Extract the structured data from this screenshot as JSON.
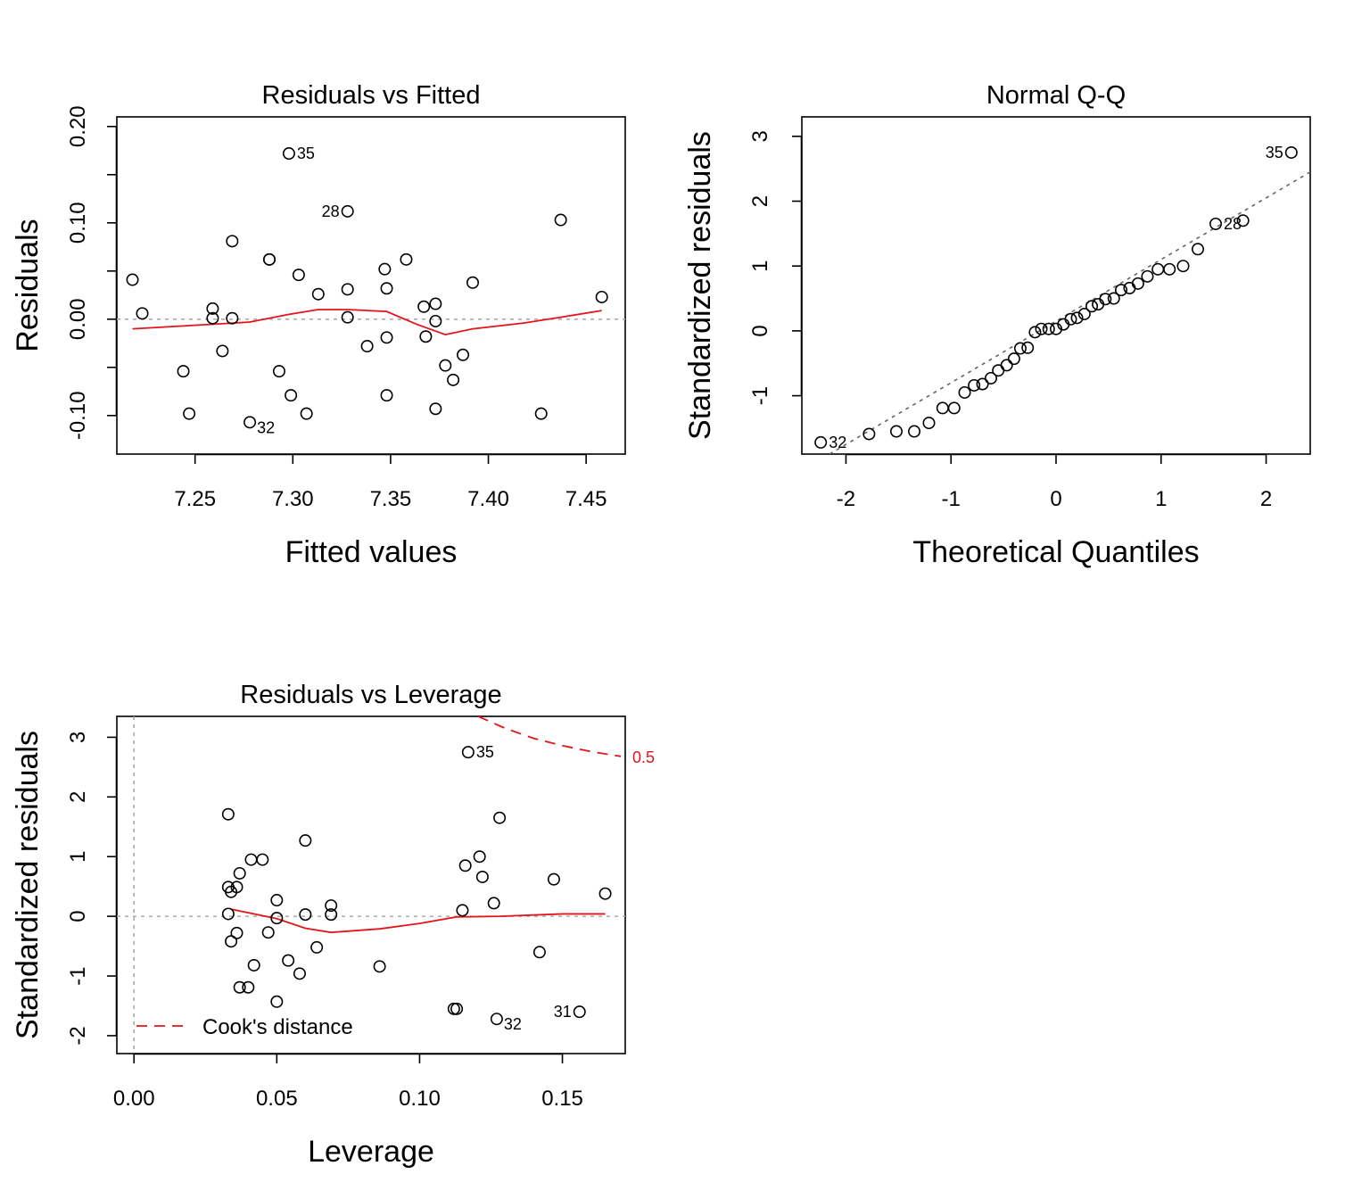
{
  "colors": {
    "smooth": "#e4141b",
    "reference": "#aaaaaa",
    "qq_line": "#666666",
    "points": "#000000"
  },
  "chart_data": [
    {
      "id": "rvf",
      "type": "scatter",
      "title": "Residuals vs Fitted",
      "xlabel": "Fitted values",
      "ylabel": "Residuals",
      "xlim": [
        7.21,
        7.47
      ],
      "ylim": [
        -0.14,
        0.21
      ],
      "xticks": [
        "7.25",
        "7.30",
        "7.35",
        "7.40",
        "7.45"
      ],
      "xtick_values": [
        7.25,
        7.3,
        7.35,
        7.4,
        7.45
      ],
      "yticks": [
        "-0.10",
        "0.00",
        "0.10",
        "0.20"
      ],
      "ytick_values": [
        -0.1,
        0.0,
        0.1,
        0.2
      ],
      "yminor_ticks": [
        -0.05,
        0.05,
        0.15
      ],
      "reference_y": 0,
      "points": [
        [
          7.218,
          0.041
        ],
        [
          7.223,
          0.006
        ],
        [
          7.244,
          -0.054
        ],
        [
          7.247,
          -0.098
        ],
        [
          7.259,
          0.011
        ],
        [
          7.259,
          0.001
        ],
        [
          7.264,
          -0.033
        ],
        [
          7.269,
          0.081
        ],
        [
          7.269,
          0.001
        ],
        [
          7.278,
          -0.107
        ],
        [
          7.288,
          0.062
        ],
        [
          7.288,
          0.062
        ],
        [
          7.293,
          -0.054
        ],
        [
          7.298,
          0.172
        ],
        [
          7.299,
          -0.079
        ],
        [
          7.303,
          0.046
        ],
        [
          7.307,
          -0.098
        ],
        [
          7.313,
          0.026
        ],
        [
          7.328,
          0.002
        ],
        [
          7.328,
          0.031
        ],
        [
          7.328,
          0.112
        ],
        [
          7.338,
          -0.028
        ],
        [
          7.347,
          0.052
        ],
        [
          7.348,
          0.032
        ],
        [
          7.348,
          -0.019
        ],
        [
          7.348,
          -0.079
        ],
        [
          7.358,
          0.062
        ],
        [
          7.367,
          0.013
        ],
        [
          7.368,
          -0.018
        ],
        [
          7.373,
          0.016
        ],
        [
          7.373,
          -0.002
        ],
        [
          7.373,
          -0.093
        ],
        [
          7.378,
          -0.048
        ],
        [
          7.382,
          -0.063
        ],
        [
          7.387,
          -0.037
        ],
        [
          7.392,
          0.038
        ],
        [
          7.427,
          -0.098
        ],
        [
          7.437,
          0.103
        ],
        [
          7.458,
          0.023
        ]
      ],
      "smooth": [
        [
          7.218,
          -0.01
        ],
        [
          7.278,
          -0.003
        ],
        [
          7.298,
          0.005
        ],
        [
          7.313,
          0.01
        ],
        [
          7.328,
          0.01
        ],
        [
          7.348,
          0.008
        ],
        [
          7.363,
          -0.005
        ],
        [
          7.378,
          -0.016
        ],
        [
          7.392,
          -0.01
        ],
        [
          7.418,
          -0.004
        ],
        [
          7.437,
          0.002
        ],
        [
          7.458,
          0.009
        ]
      ],
      "labels": [
        {
          "text": "35",
          "x": 7.298,
          "y": 0.172,
          "side": "right"
        },
        {
          "text": "28",
          "x": 7.328,
          "y": 0.112,
          "side": "left"
        },
        {
          "text": "32",
          "x": 7.278,
          "y": -0.107,
          "side": "right-below"
        }
      ]
    },
    {
      "id": "qq",
      "type": "scatter",
      "title": "Normal Q-Q",
      "xlabel": "Theoretical Quantiles",
      "ylabel": "Standardized residuals",
      "xlim": [
        -2.42,
        2.42
      ],
      "ylim": [
        -1.9,
        3.3
      ],
      "xticks": [
        "-2",
        "-1",
        "0",
        "1",
        "2"
      ],
      "xtick_values": [
        -2,
        -1,
        0,
        1,
        2
      ],
      "yticks": [
        "-1",
        "0",
        "1",
        "2",
        "3"
      ],
      "ytick_values": [
        -1,
        0,
        1,
        2,
        3
      ],
      "qq_line": [
        [
          -2.42,
          -2.15
        ],
        [
          2.42,
          2.45
        ]
      ],
      "points": [
        [
          -2.24,
          -1.72
        ],
        [
          -1.78,
          -1.59
        ],
        [
          -1.52,
          -1.55
        ],
        [
          -1.35,
          -1.55
        ],
        [
          -1.21,
          -1.42
        ],
        [
          -1.08,
          -1.19
        ],
        [
          -0.97,
          -1.19
        ],
        [
          -0.87,
          -0.95
        ],
        [
          -0.78,
          -0.84
        ],
        [
          -0.7,
          -0.82
        ],
        [
          -0.62,
          -0.73
        ],
        [
          -0.55,
          -0.61
        ],
        [
          -0.47,
          -0.53
        ],
        [
          -0.4,
          -0.43
        ],
        [
          -0.34,
          -0.27
        ],
        [
          -0.27,
          -0.26
        ],
        [
          -0.2,
          -0.02
        ],
        [
          -0.14,
          0.03
        ],
        [
          -0.07,
          0.03
        ],
        [
          0.0,
          0.03
        ],
        [
          0.07,
          0.1
        ],
        [
          0.14,
          0.18
        ],
        [
          0.2,
          0.2
        ],
        [
          0.27,
          0.26
        ],
        [
          0.34,
          0.38
        ],
        [
          0.4,
          0.41
        ],
        [
          0.47,
          0.49
        ],
        [
          0.55,
          0.5
        ],
        [
          0.62,
          0.63
        ],
        [
          0.7,
          0.66
        ],
        [
          0.78,
          0.73
        ],
        [
          0.87,
          0.84
        ],
        [
          0.97,
          0.95
        ],
        [
          1.08,
          0.95
        ],
        [
          1.21,
          1.0
        ],
        [
          1.35,
          1.26
        ],
        [
          1.52,
          1.65
        ],
        [
          1.78,
          1.7
        ],
        [
          2.24,
          2.75
        ]
      ],
      "labels": [
        {
          "text": "35",
          "x": 2.24,
          "y": 2.75,
          "side": "left"
        },
        {
          "text": "28",
          "x": 1.52,
          "y": 1.65,
          "side": "right"
        },
        {
          "text": "32",
          "x": -2.24,
          "y": -1.72,
          "side": "right"
        }
      ]
    },
    {
      "id": "rvl",
      "type": "scatter",
      "title": "Residuals vs Leverage",
      "xlabel": "Leverage",
      "ylabel": "Standardized residuals",
      "xlim": [
        -0.006,
        0.172
      ],
      "ylim": [
        -2.3,
        3.35
      ],
      "xticks": [
        "0.00",
        "0.05",
        "0.10",
        "0.15"
      ],
      "xtick_values": [
        0.0,
        0.05,
        0.1,
        0.15
      ],
      "yticks": [
        "-2",
        "-1",
        "0",
        "1",
        "2",
        "3"
      ],
      "ytick_values": [
        -2,
        -1,
        0,
        1,
        2,
        3
      ],
      "reference_y": 0,
      "reference_x": 0,
      "points": [
        [
          0.033,
          1.71
        ],
        [
          0.033,
          0.49
        ],
        [
          0.033,
          0.04
        ],
        [
          0.034,
          -0.42
        ],
        [
          0.034,
          0.41
        ],
        [
          0.036,
          0.49
        ],
        [
          0.037,
          0.72
        ],
        [
          0.036,
          -0.28
        ],
        [
          0.037,
          -1.19
        ],
        [
          0.04,
          -1.19
        ],
        [
          0.041,
          0.95
        ],
        [
          0.042,
          -0.82
        ],
        [
          0.045,
          0.95
        ],
        [
          0.047,
          -0.27
        ],
        [
          0.05,
          0.27
        ],
        [
          0.05,
          -0.03
        ],
        [
          0.05,
          -1.43
        ],
        [
          0.054,
          -0.74
        ],
        [
          0.058,
          -0.96
        ],
        [
          0.06,
          1.27
        ],
        [
          0.06,
          0.03
        ],
        [
          0.064,
          -0.52
        ],
        [
          0.069,
          0.18
        ],
        [
          0.069,
          0.03
        ],
        [
          0.086,
          -0.84
        ],
        [
          0.112,
          -1.55
        ],
        [
          0.113,
          -1.55
        ],
        [
          0.115,
          0.1
        ],
        [
          0.116,
          0.85
        ],
        [
          0.117,
          2.75
        ],
        [
          0.121,
          1.0
        ],
        [
          0.122,
          0.66
        ],
        [
          0.126,
          0.22
        ],
        [
          0.127,
          -1.72
        ],
        [
          0.128,
          1.65
        ],
        [
          0.142,
          -0.6
        ],
        [
          0.147,
          0.62
        ],
        [
          0.156,
          -1.6
        ],
        [
          0.165,
          0.38
        ]
      ],
      "smooth": [
        [
          0.034,
          0.12
        ],
        [
          0.05,
          -0.04
        ],
        [
          0.06,
          -0.2
        ],
        [
          0.069,
          -0.27
        ],
        [
          0.086,
          -0.21
        ],
        [
          0.1,
          -0.12
        ],
        [
          0.113,
          -0.01
        ],
        [
          0.128,
          0.0
        ],
        [
          0.15,
          0.04
        ],
        [
          0.165,
          0.04
        ]
      ],
      "cooks_distance": [
        [
          0.1205,
          3.35
        ],
        [
          0.13,
          3.15
        ],
        [
          0.14,
          2.98
        ],
        [
          0.15,
          2.86
        ],
        [
          0.16,
          2.76
        ],
        [
          0.1705,
          2.68
        ]
      ],
      "cooks_label": "0.5",
      "legend": {
        "label": "Cook's distance",
        "position": "bottom-left"
      },
      "labels": [
        {
          "text": "35",
          "x": 0.117,
          "y": 2.75,
          "side": "right"
        },
        {
          "text": "32",
          "x": 0.127,
          "y": -1.72,
          "side": "right-below"
        },
        {
          "text": "31",
          "x": 0.156,
          "y": -1.6,
          "side": "left"
        }
      ]
    }
  ]
}
